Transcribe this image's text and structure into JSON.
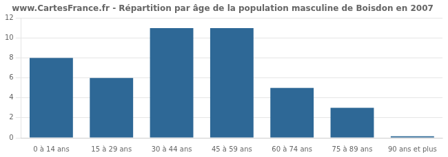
{
  "chart_data": {
    "type": "bar",
    "title": "www.CartesFrance.fr - Répartition par âge de la population masculine de Boisdon en 2007",
    "categories": [
      "0 à 14 ans",
      "15 à 29 ans",
      "30 à 44 ans",
      "45 à 59 ans",
      "60 à 74 ans",
      "75 à 89 ans",
      "90 ans et plus"
    ],
    "values": [
      8,
      6,
      11,
      11,
      5,
      3,
      0.15
    ],
    "color": "#2e6896",
    "ylim": [
      0,
      12
    ],
    "yticks": [
      0,
      2,
      4,
      6,
      8,
      10,
      12
    ],
    "grid": true
  }
}
